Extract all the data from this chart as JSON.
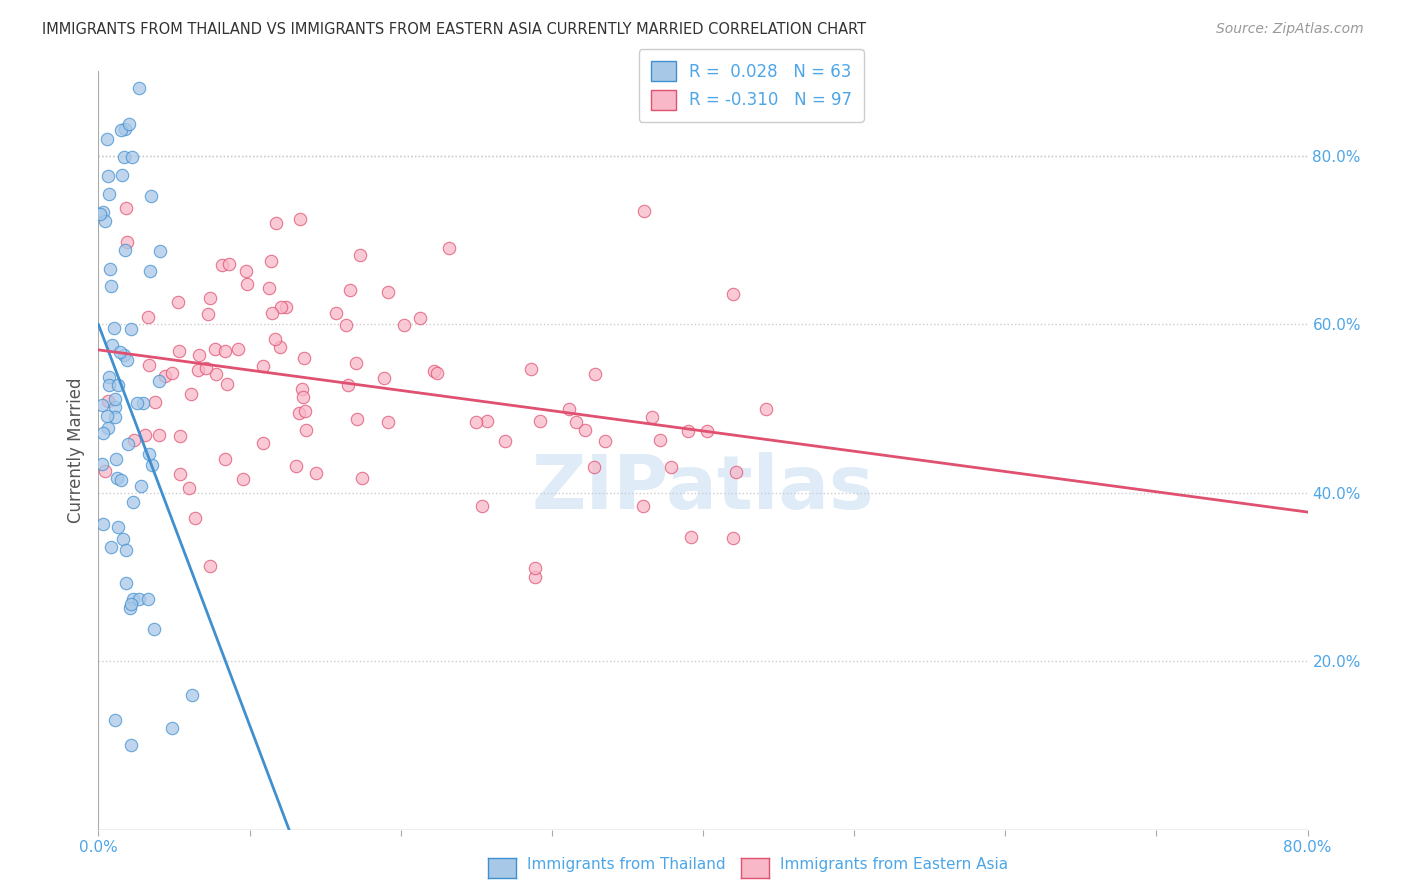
{
  "title": "IMMIGRANTS FROM THAILAND VS IMMIGRANTS FROM EASTERN ASIA CURRENTLY MARRIED CORRELATION CHART",
  "source": "Source: ZipAtlas.com",
  "ylabel": "Currently Married",
  "xlim": [
    0.0,
    0.8
  ],
  "ylim": [
    0.0,
    0.9
  ],
  "y_ticks_right": [
    0.2,
    0.4,
    0.6,
    0.8
  ],
  "y_tick_labels_right": [
    "20.0%",
    "40.0%",
    "60.0%",
    "80.0%"
  ],
  "color_thailand": "#a8c8e8",
  "color_eastern_asia": "#f8b8c8",
  "trendline_color_thailand": "#4090d0",
  "trendline_color_eastern_asia": "#e05070",
  "watermark_text": "ZIPatlas",
  "series1_label": "Immigrants from Thailand",
  "series2_label": "Immigrants from Eastern Asia",
  "R1": 0.028,
  "R2": -0.31,
  "N1": 63,
  "N2": 97,
  "seed": 42,
  "background_color": "#ffffff",
  "grid_color": "#cccccc",
  "title_color": "#333333",
  "axis_label_color": "#4da6e8",
  "legend_text_color": "#4da6e8"
}
